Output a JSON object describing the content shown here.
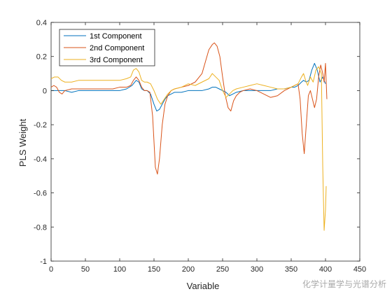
{
  "chart_data": {
    "type": "line",
    "title": "",
    "xlabel": "Variable",
    "ylabel": "PLS Weight",
    "xlim": [
      0,
      450
    ],
    "ylim": [
      -1,
      0.4
    ],
    "xticks": [
      0,
      50,
      100,
      150,
      200,
      250,
      300,
      350,
      400,
      450
    ],
    "yticks": [
      -1,
      -0.8,
      -0.6,
      -0.4,
      -0.2,
      0,
      0.2,
      0.4
    ],
    "grid": false,
    "legend_position": "top-left",
    "series": [
      {
        "name": "1st Component",
        "color": "#0072BD",
        "x": [
          0,
          10,
          20,
          30,
          40,
          50,
          60,
          70,
          80,
          90,
          100,
          110,
          118,
          124,
          128,
          132,
          136,
          140,
          145,
          150,
          154,
          158,
          162,
          166,
          170,
          175,
          180,
          190,
          200,
          210,
          220,
          230,
          235,
          240,
          245,
          250,
          255,
          260,
          265,
          270,
          280,
          290,
          300,
          310,
          320,
          330,
          340,
          350,
          355,
          360,
          365,
          368,
          372,
          376,
          380,
          384,
          388,
          392,
          396,
          400
        ],
        "y": [
          0.0,
          0.0,
          0.0,
          -0.01,
          0.0,
          0.0,
          0.0,
          0.0,
          0.0,
          0.0,
          0.0,
          0.01,
          0.03,
          0.06,
          0.05,
          0.01,
          0.0,
          0.0,
          -0.02,
          -0.08,
          -0.12,
          -0.11,
          -0.08,
          -0.05,
          -0.03,
          -0.02,
          -0.01,
          -0.01,
          0.0,
          0.0,
          0.0,
          0.01,
          0.02,
          0.02,
          0.01,
          0.0,
          -0.01,
          -0.03,
          -0.02,
          -0.01,
          0.0,
          0.0,
          0.0,
          0.0,
          0.0,
          0.01,
          0.01,
          0.02,
          0.02,
          0.03,
          0.05,
          0.06,
          0.05,
          0.06,
          0.12,
          0.16,
          0.12,
          0.05,
          0.08,
          0.04
        ]
      },
      {
        "name": "2nd Component",
        "color": "#D95319",
        "x": [
          0,
          4,
          8,
          12,
          16,
          20,
          30,
          40,
          50,
          60,
          70,
          80,
          90,
          100,
          110,
          116,
          120,
          124,
          128,
          132,
          136,
          140,
          144,
          148,
          152,
          155,
          158,
          162,
          166,
          170,
          175,
          180,
          190,
          200,
          210,
          220,
          225,
          230,
          235,
          238,
          242,
          246,
          250,
          254,
          258,
          262,
          266,
          270,
          275,
          280,
          290,
          300,
          310,
          320,
          330,
          340,
          350,
          355,
          360,
          363,
          366,
          369,
          372,
          375,
          378,
          381,
          384,
          387,
          390,
          393,
          396,
          398,
          400,
          402
        ],
        "y": [
          0.02,
          0.03,
          0.02,
          -0.01,
          -0.02,
          0.0,
          0.01,
          0.01,
          0.01,
          0.01,
          0.01,
          0.01,
          0.01,
          0.02,
          0.02,
          0.03,
          0.06,
          0.08,
          0.06,
          0.02,
          0.0,
          0.0,
          -0.01,
          -0.15,
          -0.45,
          -0.49,
          -0.4,
          -0.2,
          -0.08,
          -0.03,
          0.0,
          0.01,
          0.02,
          0.03,
          0.05,
          0.1,
          0.17,
          0.24,
          0.27,
          0.28,
          0.26,
          0.2,
          0.08,
          -0.03,
          -0.1,
          -0.12,
          -0.06,
          -0.03,
          -0.01,
          0.0,
          0.01,
          0.0,
          -0.02,
          -0.04,
          -0.03,
          0.0,
          0.02,
          0.03,
          0.04,
          -0.05,
          -0.25,
          -0.37,
          -0.2,
          -0.03,
          0.0,
          -0.05,
          -0.1,
          -0.05,
          0.08,
          0.15,
          0.1,
          0.05,
          0.16,
          -0.05
        ]
      },
      {
        "name": "3rd Component",
        "color": "#EDB120",
        "x": [
          0,
          5,
          10,
          15,
          20,
          30,
          40,
          50,
          60,
          70,
          80,
          90,
          100,
          110,
          116,
          120,
          124,
          128,
          132,
          136,
          140,
          145,
          150,
          155,
          160,
          165,
          170,
          175,
          180,
          190,
          200,
          210,
          220,
          230,
          235,
          240,
          245,
          250,
          255,
          260,
          265,
          270,
          280,
          290,
          300,
          310,
          320,
          330,
          340,
          350,
          360,
          365,
          368,
          371,
          374,
          378,
          382,
          386,
          390,
          394,
          396,
          398,
          400,
          401
        ],
        "y": [
          0.07,
          0.08,
          0.08,
          0.06,
          0.05,
          0.05,
          0.06,
          0.06,
          0.06,
          0.06,
          0.06,
          0.06,
          0.06,
          0.07,
          0.08,
          0.12,
          0.13,
          0.11,
          0.06,
          0.05,
          0.05,
          0.04,
          0.0,
          -0.05,
          -0.08,
          -0.05,
          -0.02,
          0.0,
          0.01,
          0.02,
          0.04,
          0.03,
          0.05,
          0.07,
          0.1,
          0.08,
          0.06,
          0.0,
          -0.04,
          -0.02,
          0.0,
          0.01,
          0.02,
          0.03,
          0.04,
          0.03,
          0.02,
          0.01,
          0.01,
          0.02,
          0.04,
          0.08,
          0.1,
          0.06,
          0.03,
          0.08,
          0.05,
          0.12,
          0.14,
          0.1,
          -0.45,
          -0.82,
          -0.7,
          -0.56
        ]
      }
    ]
  },
  "watermark": "化学计量学与光谱分析"
}
